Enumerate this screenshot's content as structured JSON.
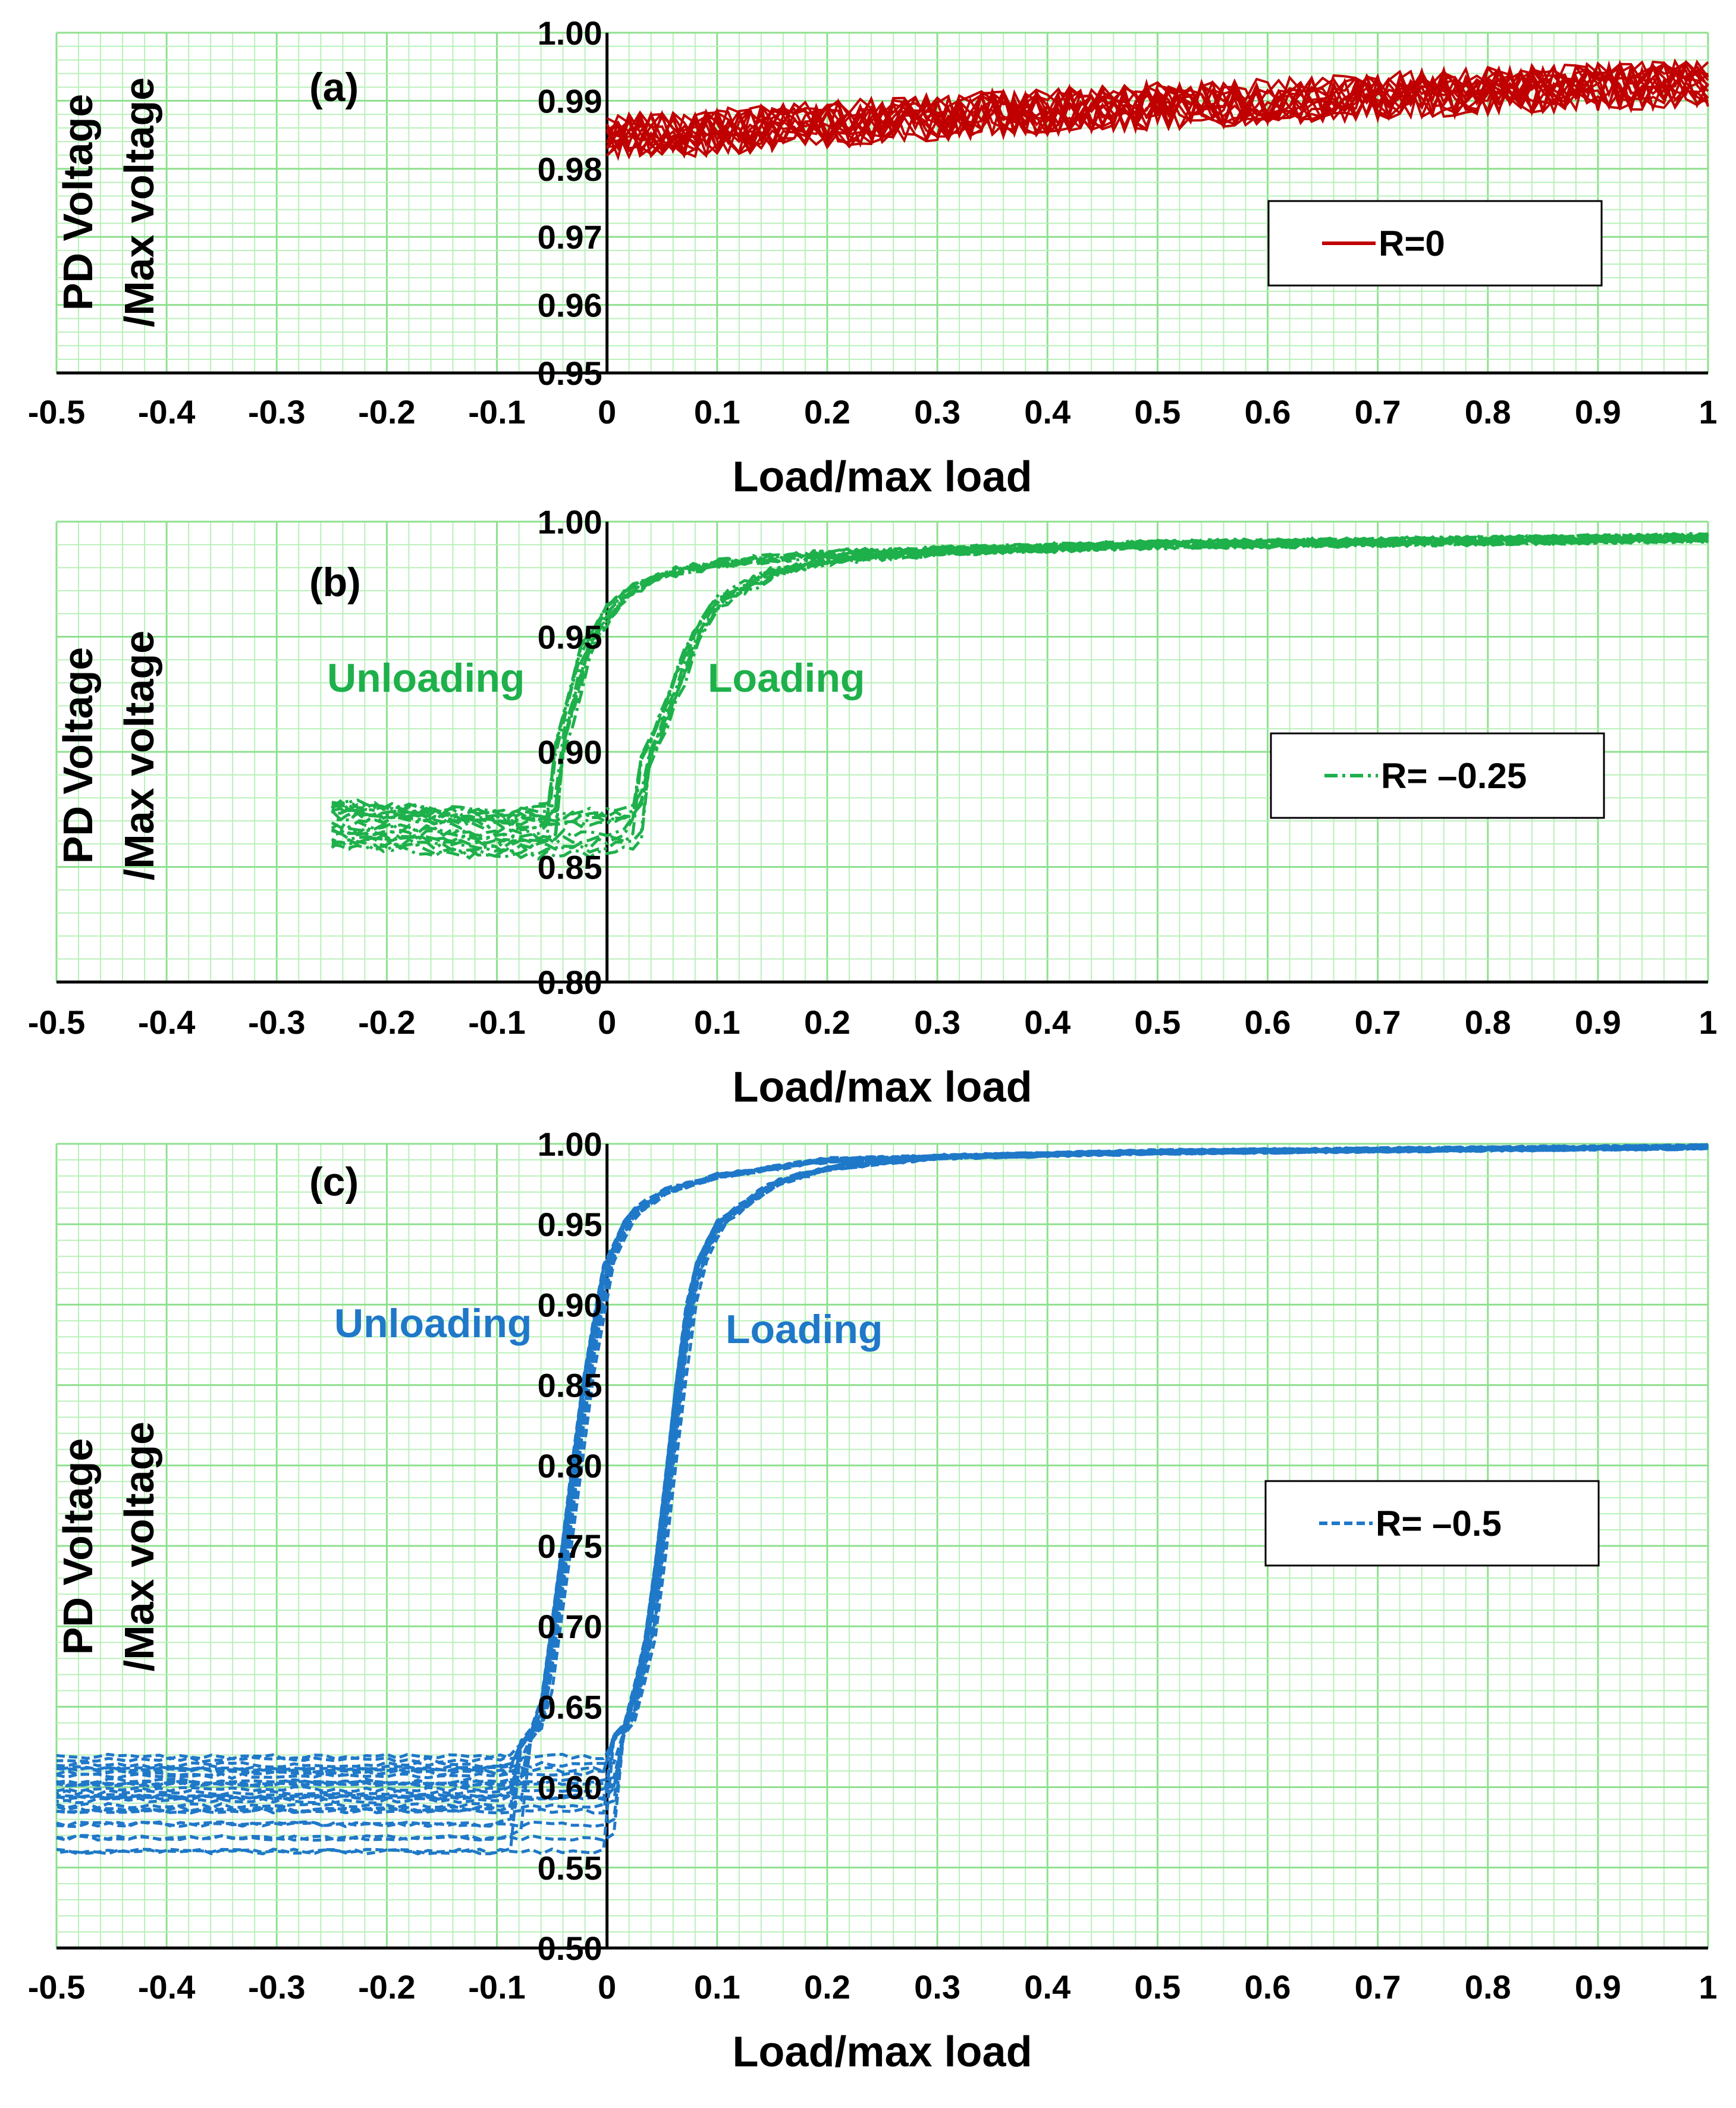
{
  "chart_data": [
    {
      "type": "line",
      "panel_label": "(a)",
      "xlabel": "Load/max load",
      "ylabel": [
        "PD Voltage",
        "/Max voltage"
      ],
      "xlim": [
        -0.5,
        1
      ],
      "ylim": [
        0.95,
        1.0
      ],
      "x_ticks": [
        "-0.5",
        "-0.4",
        "-0.3",
        "-0.2",
        "-0.1",
        "0",
        "0.1",
        "0.2",
        "0.3",
        "0.4",
        "0.5",
        "0.6",
        "0.7",
        "0.8",
        "0.9",
        "1"
      ],
      "y_ticks": [
        "0.95",
        "0.96",
        "0.97",
        "0.98",
        "0.99",
        "1.00"
      ],
      "grid": true,
      "legend_position": "right",
      "color": "#c00000",
      "series": [
        {
          "name": "R=0",
          "style": "solid",
          "x": [
            0,
            0.1,
            0.2,
            0.3,
            0.4,
            0.5,
            0.6,
            0.7,
            0.8,
            0.9,
            1.0
          ],
          "y": [
            0.9845,
            0.9855,
            0.9865,
            0.9875,
            0.9885,
            0.9892,
            0.99,
            0.9907,
            0.9915,
            0.992,
            0.9925
          ],
          "band": 0.0035
        }
      ],
      "annotations": []
    },
    {
      "type": "line",
      "panel_label": "(b)",
      "xlabel": "Load/max load",
      "ylabel": [
        "PD Voltage",
        "/Max voltage"
      ],
      "xlim": [
        -0.5,
        1
      ],
      "ylim": [
        0.8,
        1.0
      ],
      "x_ticks": [
        "-0.5",
        "-0.4",
        "-0.3",
        "-0.2",
        "-0.1",
        "0",
        "0.1",
        "0.2",
        "0.3",
        "0.4",
        "0.5",
        "0.6",
        "0.7",
        "0.8",
        "0.9",
        "1"
      ],
      "y_ticks": [
        "0.80",
        "0.85",
        "0.90",
        "0.95",
        "1.00"
      ],
      "grid": true,
      "legend_position": "right",
      "color": "#1eb04b",
      "series": [
        {
          "name": "R= –0.25",
          "style": "dash-dot",
          "loading": {
            "x": [
              -0.25,
              -0.15,
              -0.05,
              0.0,
              0.02,
              0.04,
              0.06,
              0.08,
              0.1,
              0.15,
              0.2,
              0.3,
              0.5,
              0.7,
              1.0
            ],
            "y": [
              0.89,
              0.887,
              0.885,
              0.886,
              0.888,
              0.9,
              0.925,
              0.95,
              0.965,
              0.978,
              0.983,
              0.987,
              0.99,
              0.991,
              0.993
            ]
          },
          "unloading": {
            "x": [
              1.0,
              0.5,
              0.2,
              0.1,
              0.05,
              0.02,
              0.0,
              -0.02,
              -0.03,
              -0.05,
              -0.1,
              -0.2,
              -0.25
            ],
            "y": [
              0.993,
              0.99,
              0.986,
              0.982,
              0.977,
              0.97,
              0.96,
              0.945,
              0.925,
              0.89,
              0.885,
              0.888,
              0.89
            ]
          },
          "lower_spread": [
            0.86,
            0.87
          ]
        }
      ],
      "annotations": [
        {
          "text": "Unloading"
        },
        {
          "text": "Loading"
        }
      ]
    },
    {
      "type": "line",
      "panel_label": "(c)",
      "xlabel": "Load/max load",
      "ylabel": [
        "PD Voltage",
        "/Max voltage"
      ],
      "xlim": [
        -0.5,
        1
      ],
      "ylim": [
        0.5,
        1.0
      ],
      "x_ticks": [
        "-0.5",
        "-0.4",
        "-0.3",
        "-0.2",
        "-0.1",
        "0",
        "0.1",
        "0.2",
        "0.3",
        "0.4",
        "0.5",
        "0.6",
        "0.7",
        "0.8",
        "0.9",
        "1"
      ],
      "y_ticks": [
        "0.50",
        "0.55",
        "0.60",
        "0.65",
        "0.70",
        "0.75",
        "0.80",
        "0.85",
        "0.90",
        "0.95",
        "1.00"
      ],
      "grid": true,
      "legend_position": "right",
      "color": "#1f78c8",
      "series": [
        {
          "name": "R= –0.5",
          "style": "dashed",
          "loading": {
            "x": [
              -0.5,
              -0.3,
              -0.1,
              0.0,
              0.02,
              0.04,
              0.06,
              0.07,
              0.08,
              0.1,
              0.15,
              0.2,
              0.3,
              0.5,
              1.0
            ],
            "y": [
              0.625,
              0.625,
              0.625,
              0.625,
              0.64,
              0.7,
              0.82,
              0.88,
              0.92,
              0.95,
              0.975,
              0.985,
              0.992,
              0.995,
              0.998
            ]
          },
          "unloading": {
            "x": [
              1.0,
              0.5,
              0.2,
              0.1,
              0.05,
              0.02,
              0.0,
              -0.02,
              -0.04,
              -0.06,
              -0.08,
              -0.1,
              -0.3,
              -0.5
            ],
            "y": [
              0.998,
              0.995,
              0.99,
              0.98,
              0.97,
              0.955,
              0.925,
              0.85,
              0.74,
              0.64,
              0.625,
              0.62,
              0.62,
              0.62
            ]
          },
          "lower_spread": [
            0.56,
            0.615
          ]
        }
      ],
      "annotations": [
        {
          "text": "Unloading"
        },
        {
          "text": "Loading"
        }
      ]
    }
  ]
}
